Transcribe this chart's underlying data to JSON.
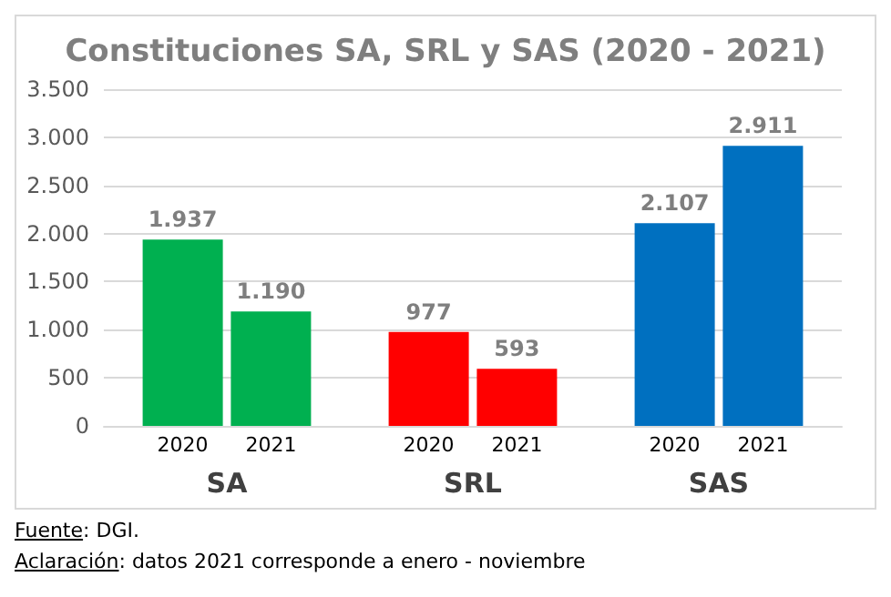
{
  "chart_data": {
    "type": "bar",
    "title": "Constituciones SA, SRL y SAS (2020 - 2021)",
    "categories": [
      "SA",
      "SRL",
      "SAS"
    ],
    "series": [
      {
        "name": "2020",
        "colors": [
          "#00b050",
          "#ff0000",
          "#0070c0"
        ],
        "values": [
          1937,
          977,
          2107
        ]
      },
      {
        "name": "2021",
        "colors": [
          "#00b050",
          "#ff0000",
          "#0070c0"
        ],
        "values": [
          1190,
          593,
          2911
        ]
      }
    ],
    "ylim": [
      0,
      3500
    ],
    "yticks": [
      {
        "value": 0,
        "label": "0"
      },
      {
        "value": 500,
        "label": "500"
      },
      {
        "value": 1000,
        "label": "1.000"
      },
      {
        "value": 1500,
        "label": "1.500"
      },
      {
        "value": 2000,
        "label": "2.000"
      },
      {
        "value": 2500,
        "label": "2.500"
      },
      {
        "value": 3000,
        "label": "3.000"
      },
      {
        "value": 3500,
        "label": "3.500"
      }
    ],
    "value_labels": [
      [
        "1.937",
        "977",
        "2.107"
      ],
      [
        "1.190",
        "593",
        "2.911"
      ]
    ],
    "grid": "y",
    "legend": false,
    "annotations": [
      "Fuente: DGI.",
      "Aclaración: datos 2021 corresponde a enero - noviembre"
    ]
  }
}
